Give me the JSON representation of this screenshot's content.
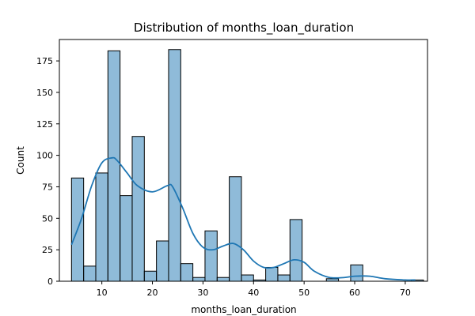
{
  "chart_data": {
    "type": "histogram",
    "title": "Distribution of months_loan_duration",
    "xlabel": "months_loan_duration",
    "ylabel": "Count",
    "xlim": [
      1.6,
      74.4
    ],
    "ylim": [
      0,
      192
    ],
    "x_ticks": [
      10,
      20,
      30,
      40,
      50,
      60,
      70
    ],
    "y_ticks": [
      0,
      25,
      50,
      75,
      100,
      125,
      150,
      175
    ],
    "bin_width": 2.4,
    "bars": [
      {
        "x0": 4.0,
        "x1": 6.4,
        "count": 82
      },
      {
        "x0": 6.4,
        "x1": 8.8,
        "count": 12
      },
      {
        "x0": 8.8,
        "x1": 11.2,
        "count": 86
      },
      {
        "x0": 11.2,
        "x1": 13.6,
        "count": 183
      },
      {
        "x0": 13.6,
        "x1": 16.0,
        "count": 68
      },
      {
        "x0": 16.0,
        "x1": 18.4,
        "count": 115
      },
      {
        "x0": 18.4,
        "x1": 20.8,
        "count": 8
      },
      {
        "x0": 20.8,
        "x1": 23.2,
        "count": 32
      },
      {
        "x0": 23.2,
        "x1": 25.6,
        "count": 184
      },
      {
        "x0": 25.6,
        "x1": 28.0,
        "count": 14
      },
      {
        "x0": 28.0,
        "x1": 30.4,
        "count": 3
      },
      {
        "x0": 30.4,
        "x1": 32.8,
        "count": 40
      },
      {
        "x0": 32.8,
        "x1": 35.2,
        "count": 3
      },
      {
        "x0": 35.2,
        "x1": 37.6,
        "count": 83
      },
      {
        "x0": 37.6,
        "x1": 40.0,
        "count": 5
      },
      {
        "x0": 40.0,
        "x1": 42.4,
        "count": 1
      },
      {
        "x0": 42.4,
        "x1": 44.8,
        "count": 11
      },
      {
        "x0": 44.8,
        "x1": 47.2,
        "count": 5
      },
      {
        "x0": 47.2,
        "x1": 49.6,
        "count": 49
      },
      {
        "x0": 49.6,
        "x1": 52.0,
        "count": 0
      },
      {
        "x0": 52.0,
        "x1": 54.4,
        "count": 0
      },
      {
        "x0": 54.4,
        "x1": 56.8,
        "count": 2
      },
      {
        "x0": 56.8,
        "x1": 59.2,
        "count": 0
      },
      {
        "x0": 59.2,
        "x1": 61.6,
        "count": 13
      },
      {
        "x0": 61.6,
        "x1": 64.0,
        "count": 0
      },
      {
        "x0": 64.0,
        "x1": 66.4,
        "count": 0
      },
      {
        "x0": 66.4,
        "x1": 68.8,
        "count": 0
      },
      {
        "x0": 68.8,
        "x1": 71.2,
        "count": 0
      },
      {
        "x0": 71.2,
        "x1": 73.6,
        "count": 1
      }
    ],
    "kde": {
      "x": [
        4,
        6,
        8,
        10,
        12,
        13,
        15,
        17,
        20,
        23,
        24,
        26,
        28,
        30,
        32,
        34,
        36,
        38,
        40,
        42,
        44,
        46,
        48,
        50,
        52,
        55,
        58,
        60,
        63,
        66,
        70,
        72
      ],
      "y": [
        29,
        50,
        76,
        94,
        98,
        96,
        86,
        76,
        71,
        76,
        75,
        58,
        38,
        27,
        25,
        28,
        30,
        25,
        16,
        11,
        11,
        14,
        17,
        15,
        8,
        3,
        3,
        4,
        4,
        2,
        1,
        1
      ]
    },
    "bar_color": "#1f77b4",
    "bar_opacity": 0.5,
    "bar_edge_color": "#000000",
    "kde_color": "#1f77b4",
    "grid": false,
    "legend": "none"
  }
}
